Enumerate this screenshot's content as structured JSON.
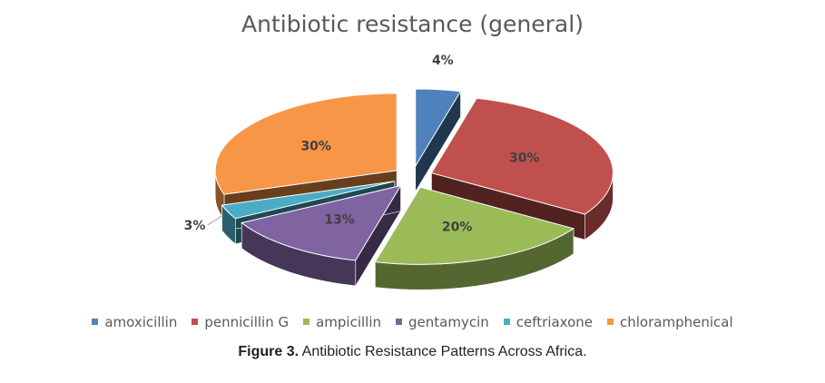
{
  "chart_data": {
    "type": "pie",
    "title": "Antibiotic resistance (general)",
    "categories": [
      "amoxicillin",
      "pennicillin G",
      "ampicillin",
      "gentamycin",
      "ceftriaxone",
      "chloramphenical"
    ],
    "values": [
      4,
      30,
      20,
      13,
      3,
      30
    ],
    "data_labels": [
      "4%",
      "30%",
      "20%",
      "13%",
      "3%",
      "30%"
    ],
    "colors": [
      "#4f81bd",
      "#c0504d",
      "#9bbb59",
      "#8064a2",
      "#4bacc6",
      "#f79646"
    ],
    "style": "3d-exploded",
    "legend_position": "bottom"
  },
  "caption": {
    "label": "Figure 3.",
    "text": " Antibiotic Resistance Patterns Across Africa."
  }
}
